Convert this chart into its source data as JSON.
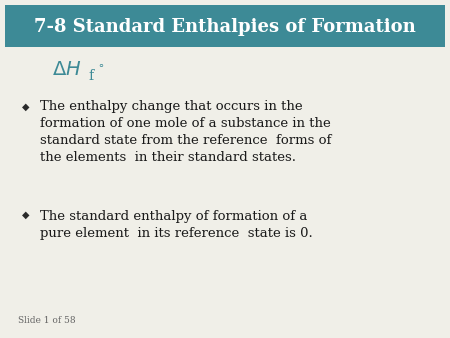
{
  "title": "7-8 Standard Enthalpies of Formation",
  "title_bg_color": "#3d8a96",
  "title_text_color": "#ffffff",
  "slide_label": "Slide 1 of 58",
  "formula_color": "#3d8a96",
  "diamond_color": "#2a2a2a",
  "bullet1_lines": [
    "The enthalpy change that occurs in the",
    "formation of one mole of a substance in the",
    "standard state from the reference  forms of",
    "the elements  in their standard states."
  ],
  "bullet2_lines": [
    "The standard enthalpy of formation of a",
    "pure element  in its reference  state is 0."
  ],
  "bg_color": "#f0efe8",
  "text_color": "#1a1a1a",
  "font_size_title": 13,
  "font_size_body": 9.5,
  "font_size_formula": 13,
  "font_size_slide": 6.5,
  "font_size_diamond": 7
}
